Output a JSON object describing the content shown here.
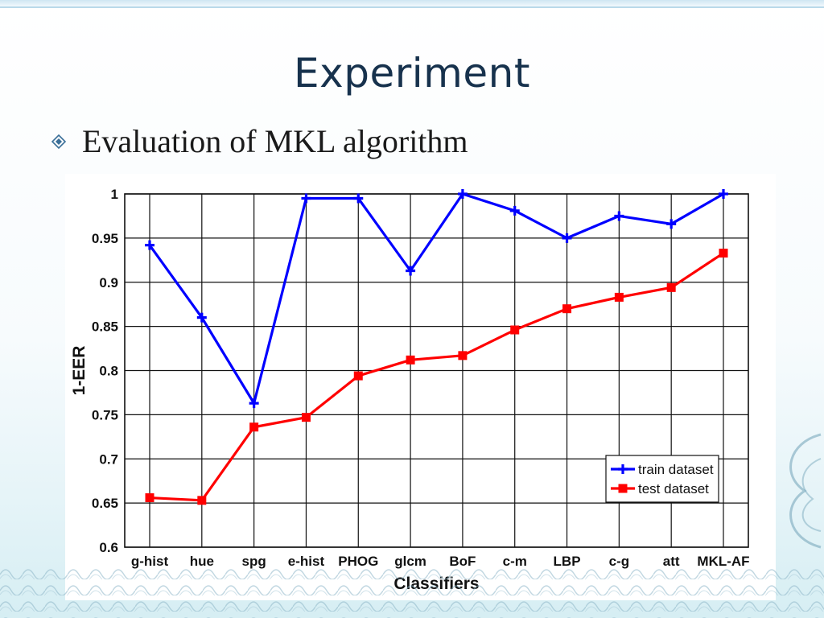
{
  "slide": {
    "title": "Experiment",
    "bullet": "Evaluation of MKL algorithm",
    "bullet_icon": "diamond-bullet-icon",
    "title_color": "#17324d"
  },
  "chart_data": {
    "type": "line",
    "title": "",
    "xlabel": "Classifiers",
    "ylabel": "1-EER",
    "categories": [
      "g-hist",
      "hue",
      "spg",
      "e-hist",
      "PHOG",
      "glcm",
      "BoF",
      "c-m",
      "LBP",
      "c-g",
      "att",
      "MKL-AF"
    ],
    "ylim": [
      0.6,
      1
    ],
    "yticks": [
      "0.6",
      "0.65",
      "0.7",
      "0.75",
      "0.8",
      "0.85",
      "0.9",
      "0.95",
      "1"
    ],
    "grid": true,
    "legend_position": "right",
    "series": [
      {
        "name": "train dataset",
        "color": "#0000ff",
        "marker": "plus",
        "values": [
          0.942,
          0.86,
          0.763,
          0.995,
          0.995,
          0.913,
          1.0,
          0.981,
          0.95,
          0.975,
          0.966,
          1.0
        ]
      },
      {
        "name": "test dataset",
        "color": "#ff0000",
        "marker": "square",
        "values": [
          0.656,
          0.653,
          0.736,
          0.747,
          0.794,
          0.812,
          0.817,
          0.846,
          0.87,
          0.883,
          0.894,
          0.933
        ]
      }
    ]
  }
}
